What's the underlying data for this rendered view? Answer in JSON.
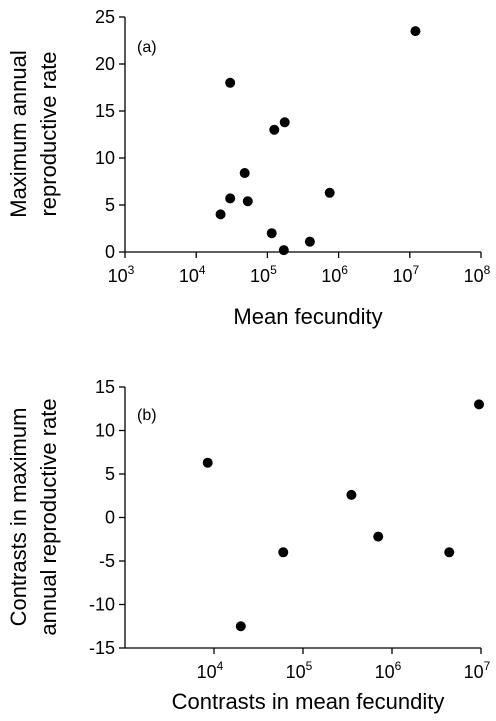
{
  "chart_data": [
    {
      "type": "scatter",
      "panel_label": "(a)",
      "xlabel": "Mean fecundity",
      "ylabel": [
        "Maximum annual",
        "reproductive rate"
      ],
      "xscale": "log",
      "xlim": [
        1000,
        100000000
      ],
      "ylim": [
        0,
        25
      ],
      "xticks": [
        {
          "base": "10",
          "exp": "3"
        },
        {
          "base": "10",
          "exp": "4"
        },
        {
          "base": "10",
          "exp": "5"
        },
        {
          "base": "10",
          "exp": "6"
        },
        {
          "base": "10",
          "exp": "7"
        },
        {
          "base": "10",
          "exp": "8"
        }
      ],
      "yticks": [
        "0",
        "5",
        "10",
        "15",
        "20",
        "25"
      ],
      "points": [
        {
          "x": 30000,
          "y": 18
        },
        {
          "x": 12000000,
          "y": 23.5
        },
        {
          "x": 175000,
          "y": 13.8
        },
        {
          "x": 125000,
          "y": 13
        },
        {
          "x": 48000,
          "y": 8.4
        },
        {
          "x": 750000,
          "y": 6.3
        },
        {
          "x": 30000,
          "y": 5.7
        },
        {
          "x": 53000,
          "y": 5.4
        },
        {
          "x": 22000,
          "y": 4
        },
        {
          "x": 115000,
          "y": 2
        },
        {
          "x": 395000,
          "y": 1.1
        },
        {
          "x": 170000,
          "y": 0.2
        }
      ]
    },
    {
      "type": "scatter",
      "panel_label": "(b)",
      "xlabel": "Contrasts in mean fecundity",
      "ylabel": [
        "Contrasts in maximum",
        "annual reproductive rate"
      ],
      "xscale": "log",
      "xlim": [
        1000,
        10000000
      ],
      "ylim": [
        -15,
        15
      ],
      "xticks": [
        {
          "base": "10",
          "exp": "4"
        },
        {
          "base": "10",
          "exp": "5"
        },
        {
          "base": "10",
          "exp": "6"
        },
        {
          "base": "10",
          "exp": "7"
        }
      ],
      "yticks": [
        "-15",
        "-10",
        "-5",
        "0",
        "5",
        "10",
        "15"
      ],
      "points": [
        {
          "x": 8500,
          "y": 6.3
        },
        {
          "x": 9500000,
          "y": 13
        },
        {
          "x": 350000,
          "y": 2.6
        },
        {
          "x": 700000,
          "y": -2.2
        },
        {
          "x": 60000,
          "y": -4
        },
        {
          "x": 4400000,
          "y": -4
        },
        {
          "x": 20000,
          "y": -12.5
        }
      ]
    }
  ]
}
